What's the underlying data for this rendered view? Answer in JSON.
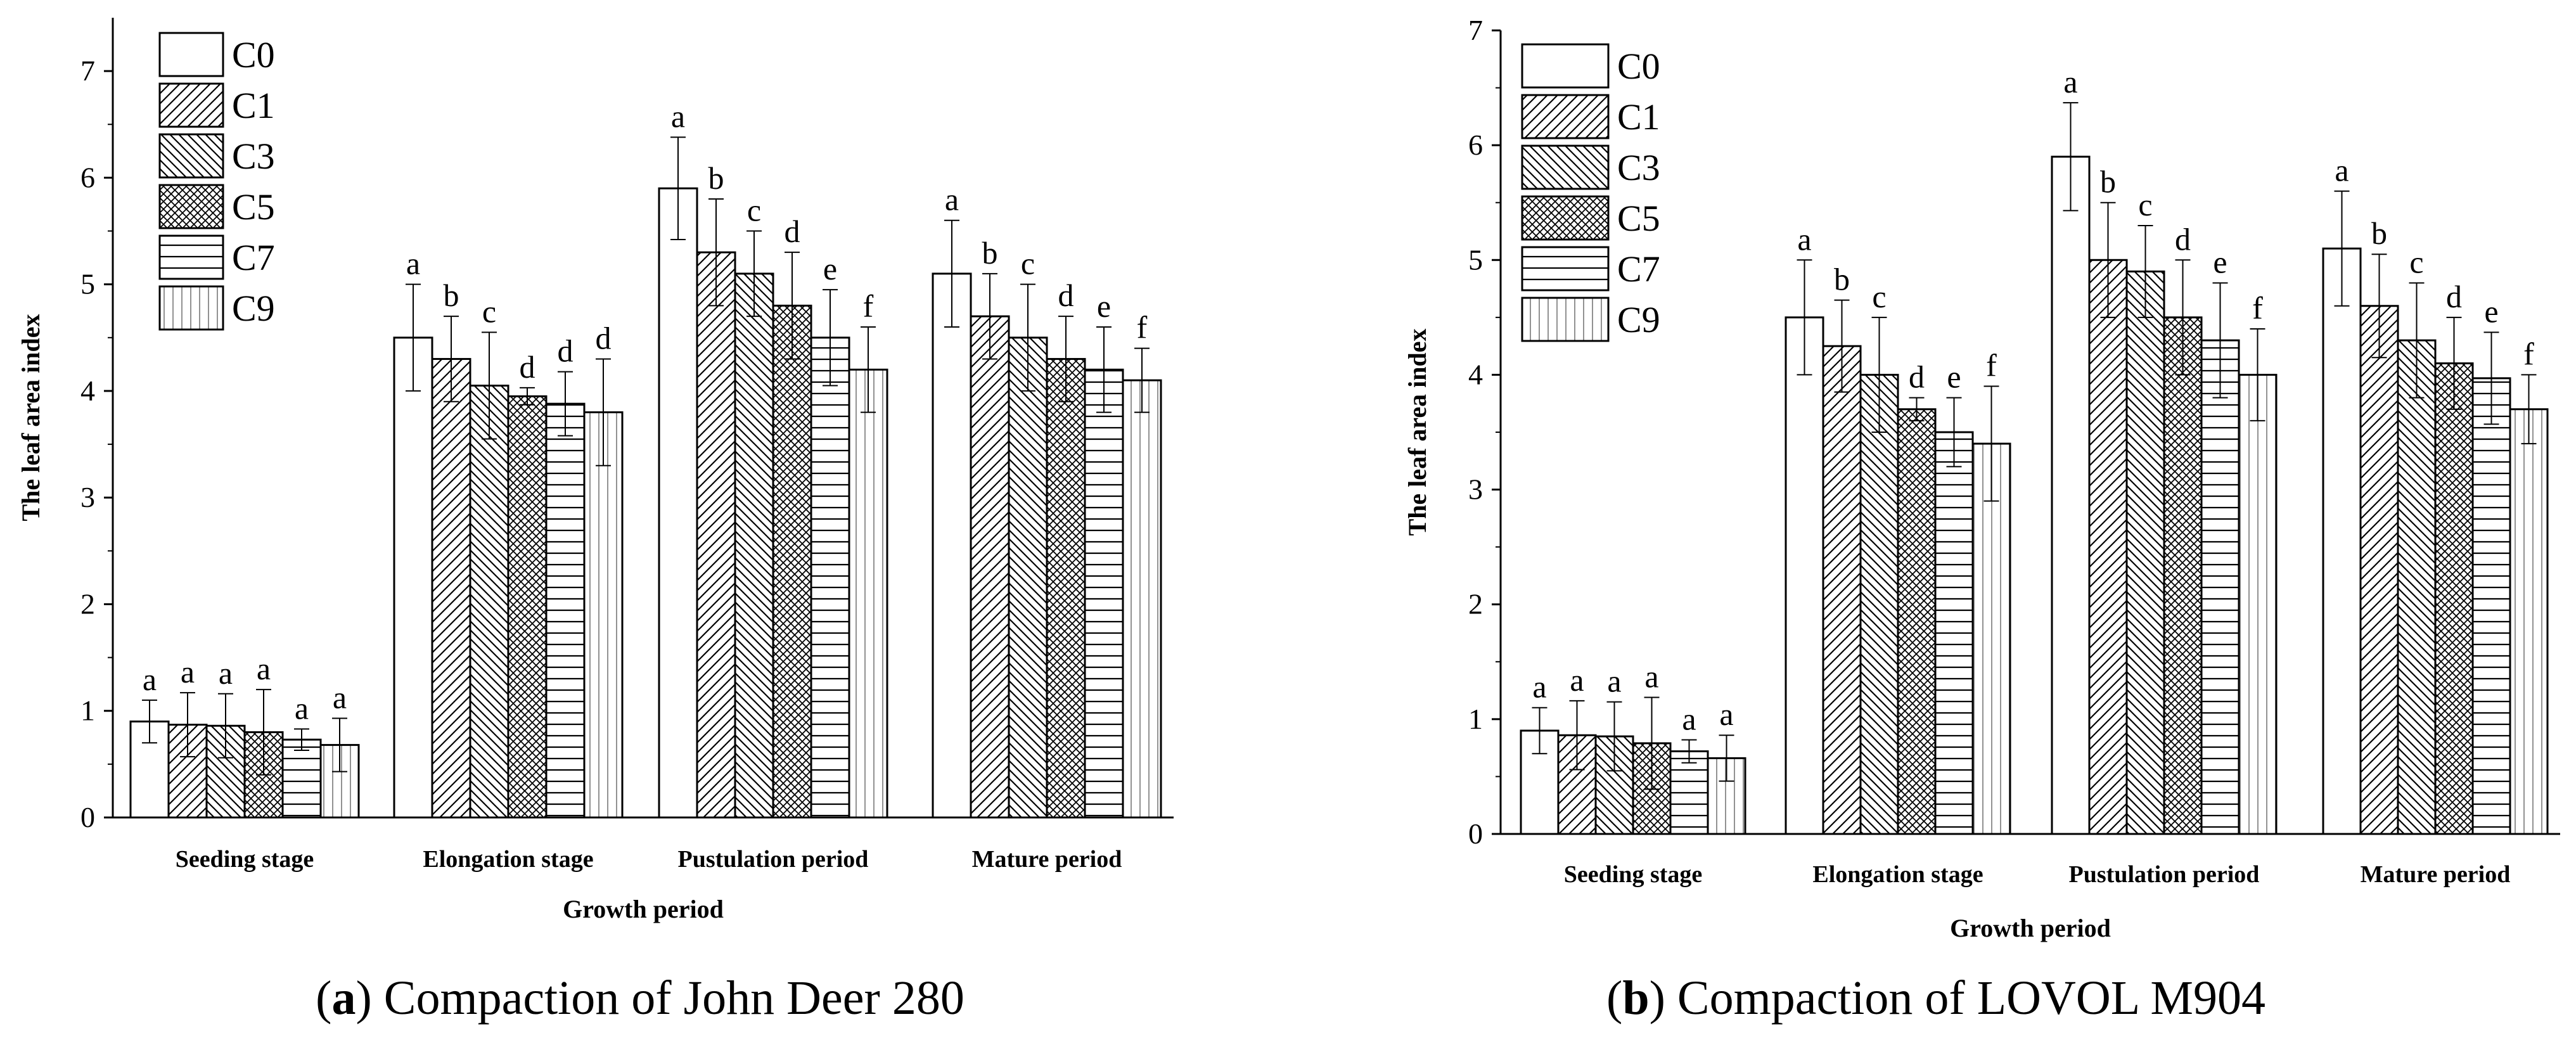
{
  "legend": [
    "C0",
    "C1",
    "C3",
    "C5",
    "C7",
    "C9"
  ],
  "charts": [
    {
      "caption_letter": "a",
      "caption_text": "Compaction of John Deer 280",
      "xlabel": "Growth period",
      "ylabel": "The leaf area index",
      "yticks": [
        "0",
        "1",
        "2",
        "3",
        "4",
        "5",
        "6",
        "7"
      ]
    },
    {
      "caption_letter": "b",
      "caption_text": "Compaction of LOVOL M904",
      "xlabel": "Growth period",
      "ylabel": "The leaf area index",
      "yticks": [
        "0",
        "1",
        "2",
        "3",
        "4",
        "5",
        "6",
        "7"
      ]
    }
  ],
  "chart_data": [
    {
      "type": "bar",
      "title": "",
      "xlabel": "Growth period",
      "ylabel": "The leaf area index",
      "ylim": [
        0,
        7.5
      ],
      "legend_position": "top-left",
      "categories": [
        "Seeding stage",
        "Elongation stage",
        "Pustulation period",
        "Mature period"
      ],
      "series": [
        {
          "name": "C0",
          "values": [
            0.9,
            4.5,
            5.9,
            5.1
          ],
          "errors": [
            0.2,
            0.5,
            0.48,
            0.5
          ],
          "letters": [
            "a",
            "a",
            "a",
            "a"
          ]
        },
        {
          "name": "C1",
          "values": [
            0.87,
            4.3,
            5.3,
            4.7
          ],
          "errors": [
            0.3,
            0.4,
            0.5,
            0.4
          ],
          "letters": [
            "a",
            "b",
            "b",
            "b"
          ]
        },
        {
          "name": "C3",
          "values": [
            0.86,
            4.05,
            5.1,
            4.5
          ],
          "errors": [
            0.3,
            0.5,
            0.4,
            0.5
          ],
          "letters": [
            "a",
            "c",
            "c",
            "c"
          ]
        },
        {
          "name": "C5",
          "values": [
            0.8,
            3.95,
            4.8,
            4.3
          ],
          "errors": [
            0.4,
            0.08,
            0.5,
            0.4
          ],
          "letters": [
            "a",
            "d",
            "d",
            "d"
          ]
        },
        {
          "name": "C7",
          "values": [
            0.73,
            3.88,
            4.5,
            4.2
          ],
          "errors": [
            0.1,
            0.3,
            0.45,
            0.4
          ],
          "letters": [
            "a",
            "d",
            "e",
            "e"
          ]
        },
        {
          "name": "C9",
          "values": [
            0.68,
            3.8,
            4.2,
            4.1
          ],
          "errors": [
            0.25,
            0.5,
            0.4,
            0.3
          ],
          "letters": [
            "a",
            "d",
            "f",
            "f"
          ]
        }
      ]
    },
    {
      "type": "bar",
      "title": "",
      "xlabel": "Growth period",
      "ylabel": "The leaf area index",
      "ylim": [
        0,
        7
      ],
      "legend_position": "top-left",
      "categories": [
        "Seeding stage",
        "Elongation stage",
        "Pustulation period",
        "Mature period"
      ],
      "series": [
        {
          "name": "C0",
          "values": [
            0.9,
            4.5,
            5.9,
            5.1
          ],
          "errors": [
            0.2,
            0.5,
            0.47,
            0.5
          ],
          "letters": [
            "a",
            "a",
            "a",
            "a"
          ]
        },
        {
          "name": "C1",
          "values": [
            0.86,
            4.25,
            5.0,
            4.6
          ],
          "errors": [
            0.3,
            0.4,
            0.5,
            0.45
          ],
          "letters": [
            "a",
            "b",
            "b",
            "b"
          ]
        },
        {
          "name": "C3",
          "values": [
            0.85,
            4.0,
            4.9,
            4.3
          ],
          "errors": [
            0.3,
            0.5,
            0.4,
            0.5
          ],
          "letters": [
            "a",
            "c",
            "c",
            "c"
          ]
        },
        {
          "name": "C5",
          "values": [
            0.79,
            3.7,
            4.5,
            4.1
          ],
          "errors": [
            0.4,
            0.1,
            0.5,
            0.4
          ],
          "letters": [
            "a",
            "d",
            "d",
            "d"
          ]
        },
        {
          "name": "C7",
          "values": [
            0.72,
            3.5,
            4.3,
            3.97
          ],
          "errors": [
            0.1,
            0.3,
            0.5,
            0.4
          ],
          "letters": [
            "a",
            "e",
            "e",
            "e"
          ]
        },
        {
          "name": "C9",
          "values": [
            0.66,
            3.4,
            4.0,
            3.7
          ],
          "errors": [
            0.2,
            0.5,
            0.4,
            0.3
          ],
          "letters": [
            "a",
            "f",
            "f",
            "f"
          ]
        }
      ]
    }
  ]
}
